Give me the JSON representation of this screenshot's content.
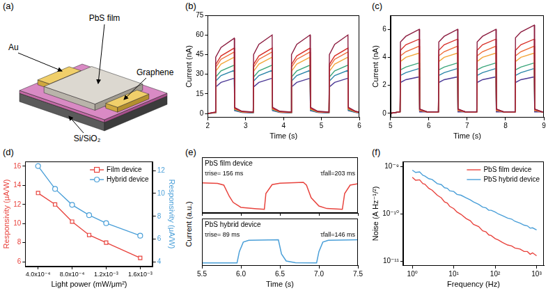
{
  "diagram": {
    "panel": "(a)",
    "labels": {
      "film": "PbS film",
      "electrode": "Au",
      "channel": "Graphene",
      "substrate": "Si/SiO₂"
    }
  },
  "chart_data": [
    {
      "panel": "(b)",
      "type": "line",
      "x_label": "Time (s)",
      "y_label": "Current (nA)",
      "grid": false,
      "x": [
        2.0,
        2.2,
        2.21,
        2.35,
        2.7,
        2.71,
        2.9,
        3.2,
        3.21,
        3.35,
        3.7,
        3.71,
        3.9,
        4.2,
        4.21,
        4.35,
        4.7,
        4.71,
        4.9,
        5.2,
        5.21,
        5.35,
        5.7,
        5.71,
        5.9,
        6.0
      ],
      "xlim": [
        2,
        6
      ],
      "xticks": [
        2,
        3,
        4,
        5,
        6
      ],
      "ylim": [
        -3,
        75
      ],
      "yticks": [
        0,
        15,
        30,
        45,
        60,
        75
      ],
      "series": [
        {
          "color": "#8c1d40",
          "values": [
            0,
            1.2,
            43,
            50.5,
            57.5,
            4.6,
            1.8,
            1.2,
            45,
            52.8,
            60,
            4.8,
            1.8,
            1.2,
            45,
            52.8,
            60,
            4.8,
            1.8,
            1.2,
            45,
            52.8,
            60,
            4.8,
            1.8,
            1.2
          ]
        },
        {
          "color": "#d8312b",
          "values": [
            0,
            1,
            37.5,
            44,
            50,
            4,
            1.5,
            1,
            37.5,
            44,
            50,
            4,
            1.5,
            1,
            37.5,
            44,
            50,
            4,
            1.5,
            1,
            37.5,
            44,
            50,
            4,
            1.5,
            1
          ]
        },
        {
          "color": "#ee6a35",
          "values": [
            0,
            0.9,
            35.3,
            41.4,
            47,
            3.8,
            1.4,
            0.9,
            35.3,
            41.4,
            47,
            3.8,
            1.4,
            0.9,
            35.3,
            41.4,
            47,
            3.8,
            1.4,
            0.9,
            35.3,
            41.4,
            47,
            3.8,
            1.4,
            0.9
          ]
        },
        {
          "color": "#f3a73b",
          "values": [
            0,
            0.9,
            32.3,
            37.8,
            43,
            3.4,
            1.3,
            0.9,
            32.3,
            37.8,
            43,
            3.4,
            1.3,
            0.9,
            32.3,
            37.8,
            43,
            3.4,
            1.3,
            0.9,
            32.3,
            37.8,
            43,
            3.4,
            1.3,
            0.9
          ]
        },
        {
          "color": "#3aa57a",
          "values": [
            0,
            0.7,
            27.8,
            32.6,
            37,
            3,
            1.1,
            0.7,
            27.8,
            32.6,
            37,
            3,
            1.1,
            0.7,
            27.8,
            32.6,
            37,
            3,
            1.1,
            0.7,
            27.8,
            32.6,
            37,
            3,
            1.1,
            0.7
          ]
        },
        {
          "color": "#2a85a8",
          "values": [
            0,
            0.7,
            24.8,
            29,
            33,
            2.6,
            1,
            0.7,
            24.8,
            29,
            33,
            2.6,
            1,
            0.7,
            24.8,
            29,
            33,
            2.6,
            1,
            0.7,
            24.8,
            29,
            33,
            2.6,
            1,
            0.7
          ]
        },
        {
          "color": "#4d3a96",
          "values": [
            0,
            0.5,
            20.3,
            23.8,
            27,
            2.2,
            0.8,
            0.5,
            20.3,
            23.8,
            27,
            2.2,
            0.8,
            0.5,
            20.3,
            23.8,
            27,
            2.2,
            0.8,
            0.5,
            20.3,
            23.8,
            27,
            2.2,
            0.8,
            0.5
          ]
        }
      ]
    },
    {
      "panel": "(c)",
      "type": "line",
      "x_label": "Time (s)",
      "y_label": "Current (nA)",
      "grid": false,
      "x": [
        5.0,
        5.25,
        5.26,
        5.4,
        5.75,
        5.76,
        5.95,
        6.25,
        6.26,
        6.4,
        6.75,
        6.76,
        6.95,
        7.25,
        7.26,
        7.4,
        7.75,
        7.76,
        7.95,
        8.25,
        8.26,
        8.4,
        8.75,
        8.76,
        8.95,
        9.0
      ],
      "xlim": [
        5,
        9
      ],
      "xticks": [
        5,
        6,
        7,
        8,
        9
      ],
      "ylim": [
        -0.3,
        7
      ],
      "yticks": [
        0,
        2,
        4,
        6
      ],
      "series": [
        {
          "color": "#8c1d40",
          "values": [
            0,
            0.1,
            5.1,
            5.5,
            6,
            0.3,
            0.1,
            0.1,
            5.1,
            5.5,
            6,
            0.3,
            0.1,
            0.1,
            5.1,
            5.5,
            6,
            0.3,
            0.1,
            0.1,
            5.4,
            5.8,
            6.3,
            0.3,
            0.1,
            0.1
          ]
        },
        {
          "color": "#d8312b",
          "values": [
            0,
            0.1,
            4.5,
            4.9,
            5.3,
            0.3,
            0.1,
            0.1,
            4.5,
            4.9,
            5.3,
            0.3,
            0.1,
            0.1,
            4.5,
            4.9,
            5.3,
            0.3,
            0.1,
            0.1,
            4.5,
            4.9,
            5.3,
            0.3,
            0.1,
            0.1
          ]
        },
        {
          "color": "#ee6a35",
          "values": [
            0,
            0.1,
            4.1,
            4.4,
            4.8,
            0.2,
            0.1,
            0.1,
            4.1,
            4.4,
            4.8,
            0.2,
            0.1,
            0.1,
            4.1,
            4.4,
            4.8,
            0.2,
            0.1,
            0.1,
            4.1,
            4.4,
            4.8,
            0.2,
            0.1,
            0.1
          ]
        },
        {
          "color": "#f3a73b",
          "values": [
            0,
            0.1,
            3.7,
            4,
            4.3,
            0.2,
            0.1,
            0.1,
            3.7,
            4,
            4.3,
            0.2,
            0.1,
            0.1,
            3.7,
            4,
            4.3,
            0.2,
            0.1,
            0.1,
            3.7,
            4,
            4.3,
            0.2,
            0.1,
            0.1
          ]
        },
        {
          "color": "#3aa57a",
          "values": [
            0,
            0.1,
            3.1,
            3.3,
            3.6,
            0.2,
            0.1,
            0.1,
            3.1,
            3.3,
            3.6,
            0.2,
            0.1,
            0.1,
            3.1,
            3.3,
            3.6,
            0.2,
            0.1,
            0.1,
            3.1,
            3.3,
            3.6,
            0.2,
            0.1,
            0.1
          ]
        },
        {
          "color": "#2a85a8",
          "values": [
            0,
            0.1,
            2.7,
            2.9,
            3.2,
            0.2,
            0.1,
            0.1,
            2.7,
            2.9,
            3.2,
            0.2,
            0.1,
            0.1,
            2.7,
            2.9,
            3.2,
            0.2,
            0.1,
            0.1,
            2.7,
            2.9,
            3.2,
            0.2,
            0.1,
            0.1
          ]
        },
        {
          "color": "#4d3a96",
          "values": [
            0,
            0.1,
            2.2,
            2.4,
            2.6,
            0.1,
            0.1,
            0.1,
            2.2,
            2.4,
            2.6,
            0.1,
            0.1,
            0.1,
            2.2,
            2.4,
            2.6,
            0.1,
            0.1,
            0.1,
            2.2,
            2.4,
            2.6,
            0.1,
            0.1,
            0.1
          ]
        }
      ]
    },
    {
      "panel": "(d)",
      "type": "line",
      "x_label": "Light power (mW/μm²)",
      "y_label": "Responsivity (μA/W)",
      "y2_label": "Responsivity (μA/W)",
      "grid": false,
      "legend": "upper right",
      "x": [
        0.0004,
        0.0006,
        0.0008,
        0.001,
        0.0012,
        0.0016
      ],
      "xlim": [
        0.00025,
        0.00175
      ],
      "xticks": [
        {
          "value": 0.0004,
          "label": "4.0x10⁻⁴"
        },
        {
          "value": 0.0008,
          "label": "8.0x10⁻⁴"
        },
        {
          "value": 0.0012,
          "label": "1.2x10⁻³"
        },
        {
          "value": 0.0016,
          "label": "1.6x10⁻³"
        }
      ],
      "ylim": [
        5.5,
        16.5
      ],
      "yticks": [
        6,
        8,
        10,
        12,
        14,
        16
      ],
      "y2lim": [
        3.6,
        12.8
      ],
      "y2ticks": [
        4,
        6,
        8,
        10,
        12
      ],
      "series": [
        {
          "name": "Film device",
          "color": "#e8433d",
          "marker": "square",
          "values": [
            13.2,
            12.0,
            10.2,
            8.8,
            8.0,
            6.4
          ]
        },
        {
          "name": "Hybrid device",
          "color": "#4a9fd8",
          "marker": "circle",
          "axis": "y2",
          "values": [
            12.4,
            10.4,
            9.0,
            8.1,
            7.4,
            6.3
          ]
        }
      ]
    },
    {
      "panel": "(e)",
      "type": "line",
      "x_label": "Time (s)",
      "y_label": "Current (a.u.)",
      "grid": false,
      "tick_labels": "x",
      "xlim": [
        5.5,
        7.5
      ],
      "xticks": [
        5.5,
        {
          "value": 6,
          "label": "6.0"
        },
        6.5,
        {
          "value": 7,
          "label": "7.0"
        },
        7.5
      ],
      "subplots": [
        {
          "title": "PbS film device",
          "color": "#e8433d",
          "ylim": [
            -0.1,
            1.9
          ],
          "x": [
            5.5,
            5.7,
            5.78,
            5.85,
            5.9,
            6.0,
            6.2,
            6.3,
            6.32,
            6.4,
            6.5,
            6.8,
            6.84,
            6.9,
            7.0,
            7.1,
            7.3,
            7.33,
            7.4,
            7.5
          ],
          "values": [
            0.98,
            0.96,
            0.9,
            0.5,
            0.28,
            0.1,
            0.05,
            0.03,
            0.6,
            0.92,
            0.97,
            1.0,
            0.9,
            0.45,
            0.15,
            0.06,
            0.03,
            0.6,
            0.9,
            0.95
          ],
          "annotations": [
            "τrise= 156 ms",
            "τfall=203 ms"
          ]
        },
        {
          "title": "PbS hybrid device",
          "color": "#4a9fd8",
          "ylim": [
            -0.1,
            1.9
          ],
          "x": [
            5.5,
            5.95,
            5.98,
            6.03,
            6.1,
            6.48,
            6.52,
            6.58,
            6.7,
            6.97,
            7.0,
            7.05,
            7.12,
            7.5
          ],
          "values": [
            0.02,
            0.02,
            0.5,
            0.9,
            0.98,
            1.0,
            0.4,
            0.1,
            0.03,
            0.02,
            0.5,
            0.9,
            0.98,
            1.0
          ],
          "annotations": [
            "τrise= 89 ms",
            "τfall=146 ms"
          ]
        }
      ]
    },
    {
      "panel": "(f)",
      "type": "line",
      "log": true,
      "x_label": "Frequency (Hz)",
      "y_label": "Noise (A Hz⁻¹/²)",
      "grid": false,
      "legend": "upper right",
      "x": [
        1,
        1.2,
        1.5,
        1.8,
        2,
        2.5,
        3,
        4,
        5,
        6,
        7,
        8,
        10,
        12,
        15,
        20,
        25,
        30,
        40,
        50,
        60,
        70,
        80,
        100,
        120,
        150,
        200,
        250,
        300,
        400,
        500,
        600,
        700,
        800,
        1000
      ],
      "xlim": [
        0.6,
        1500
      ],
      "xticks": [
        {
          "value": 1,
          "label": "10⁰"
        },
        {
          "value": 10,
          "label": "10¹"
        },
        {
          "value": 100,
          "label": "10²"
        },
        {
          "value": 1000,
          "label": "10³"
        }
      ],
      "ylim": [
        8e-12,
        1.3e-09
      ],
      "yticks": [
        {
          "value": 1e-11,
          "label": "10⁻¹¹"
        },
        {
          "value": 1e-10,
          "label": "10⁻¹⁰"
        },
        {
          "value": 1e-09,
          "label": "10⁻⁹"
        }
      ],
      "series": [
        {
          "name": "PbS film device",
          "color": "#e8433d",
          "values": [
            6e-10,
            5.2e-10,
            5.3e-10,
            4.4e-10,
            4.3e-10,
            3.5e-10,
            3.2e-10,
            2.5e-10,
            2.2e-10,
            1.8e-10,
            1.7e-10,
            1.45e-10,
            1.3e-10,
            1.1e-10,
            9.8e-11,
            8e-11,
            7.2e-11,
            6e-11,
            5.4e-11,
            4.4e-11,
            4.2e-11,
            3.6e-11,
            3.5e-11,
            3e-11,
            2.8e-11,
            2.5e-11,
            2.2e-11,
            2.1e-11,
            1.9e-11,
            1.8e-11,
            1.6e-11,
            1.6e-11,
            1.4e-11,
            1.5e-11,
            1.3e-11
          ]
        },
        {
          "name": "PbS hybrid device",
          "color": "#4a9fd8",
          "values": [
            8.5e-10,
            7.6e-10,
            7.8e-10,
            6.6e-10,
            6.4e-10,
            5.6e-10,
            5.4e-10,
            4.4e-10,
            4.2e-10,
            3.6e-10,
            3.5e-10,
            3.1e-10,
            3e-10,
            2.6e-10,
            2.5e-10,
            2.2e-10,
            2e-10,
            1.8e-10,
            1.6e-10,
            1.4e-10,
            1.35e-10,
            1.2e-10,
            1.2e-10,
            1.1e-10,
            1e-10,
            9.2e-11,
            8.2e-11,
            7.8e-11,
            7e-11,
            6.4e-11,
            5.8e-11,
            5.6e-11,
            5e-11,
            5.1e-11,
            4.6e-11
          ]
        }
      ]
    }
  ]
}
